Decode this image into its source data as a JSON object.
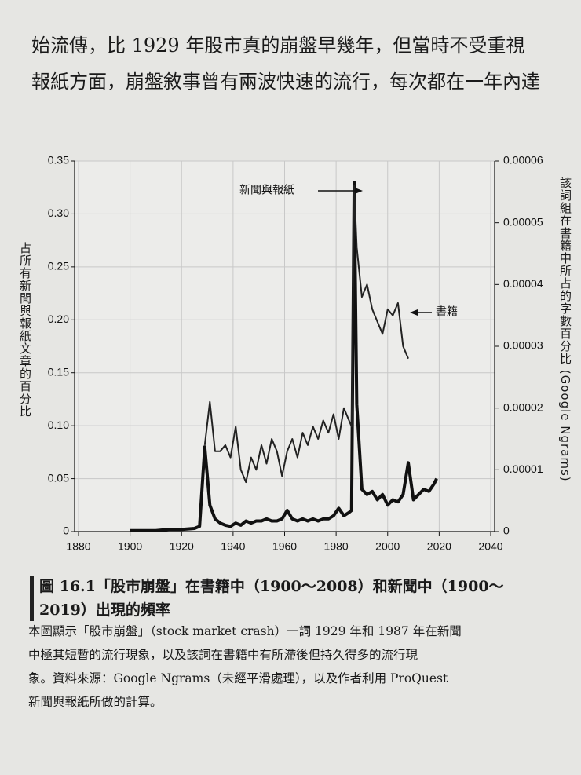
{
  "page": {
    "top_lines": [
      "始流傳，比 1929 年股市真的崩盤早幾年，但當時不受重視",
      "報紙方面，崩盤敘事曾有兩波快速的流行，每次都在一年內達"
    ],
    "caption_lines": [
      "圖 16.1「股市崩盤」在書籍中（1900～2008）和新聞中（1900～",
      "2019）出現的頻率"
    ],
    "description_lines": [
      "本圖顯示「股市崩盤」（stock market crash）一詞 1929 年和 1987 年在新聞",
      "中極其短暫的流行現象，以及該詞在書籍中有所滯後但持久得多的流行現",
      "象。資料來源：Google Ngrams（未經平滑處理），以及作者利用 ProQuest",
      "新聞與報紙所做的計算。"
    ]
  },
  "chart_data": {
    "type": "line",
    "ylabel": "占所有新聞與報紙文章的百分比",
    "y2label": "該詞組在書籍中所占的字數百分比 (Google Ngrams)",
    "annotations": [
      "新聞與報紙",
      "書籍"
    ],
    "xlim": [
      1880,
      2040
    ],
    "xticks": [
      1880,
      1900,
      1920,
      1940,
      1960,
      1980,
      2000,
      2020,
      2040
    ],
    "ylim": [
      0,
      0.35
    ],
    "yticks": [
      0,
      0.05,
      {
        "value": 0.1,
        "label": "0.10"
      },
      0.15,
      {
        "value": 0.2,
        "label": "0.20"
      },
      0.25,
      {
        "value": 0.3,
        "label": "0.30"
      },
      0.35
    ],
    "y2lim": [
      0,
      6e-05
    ],
    "y2ticks": [
      0,
      1e-05,
      2e-05,
      3e-05,
      4e-05,
      5e-05,
      6e-05
    ],
    "grid": true,
    "x": [
      1900,
      1905,
      1910,
      1915,
      1920,
      1925,
      1927,
      1929,
      1931,
      1933,
      1935,
      1937,
      1939,
      1941,
      1943,
      1945,
      1947,
      1949,
      1951,
      1953,
      1955,
      1957,
      1959,
      1961,
      1963,
      1965,
      1967,
      1969,
      1971,
      1973,
      1975,
      1977,
      1979,
      1981,
      1983,
      1985,
      1986,
      1987,
      1988,
      1990,
      1992,
      1994,
      1996,
      1998,
      2000,
      2002,
      2004,
      2006,
      2008,
      2010,
      2012,
      2014,
      2016,
      2018,
      2019
    ],
    "series": [
      {
        "name": "新聞與報紙",
        "color": "#111111",
        "axis": "y",
        "values": [
          0.001,
          0.001,
          0.001,
          0.002,
          0.002,
          0.003,
          0.005,
          0.08,
          0.025,
          0.012,
          0.008,
          0.006,
          0.005,
          0.008,
          0.006,
          0.01,
          0.008,
          0.01,
          0.01,
          0.012,
          0.01,
          0.01,
          0.012,
          0.02,
          0.012,
          0.01,
          0.012,
          0.01,
          0.012,
          0.01,
          0.012,
          0.012,
          0.015,
          0.022,
          0.015,
          0.018,
          0.02,
          0.33,
          0.12,
          0.04,
          0.035,
          0.038,
          0.03,
          0.035,
          0.025,
          0.03,
          0.028,
          0.035,
          0.065,
          0.03,
          0.035,
          0.04,
          0.038,
          0.045,
          0.05
        ]
      },
      {
        "name": "書籍",
        "color": "#222222",
        "axis": "y2",
        "values": [
          null,
          null,
          null,
          null,
          null,
          null,
          null,
          1.4e-05,
          2.1e-05,
          1.3e-05,
          1.3e-05,
          1.4e-05,
          1.2e-05,
          1.7e-05,
          1e-05,
          8e-06,
          1.2e-05,
          1e-05,
          1.4e-05,
          1.1e-05,
          1.5e-05,
          1.3e-05,
          9e-06,
          1.3e-05,
          1.5e-05,
          1.2e-05,
          1.6e-05,
          1.4e-05,
          1.7e-05,
          1.5e-05,
          1.8e-05,
          1.6e-05,
          1.9e-05,
          1.5e-05,
          2e-05,
          1.8e-05,
          1.7e-05,
          5.6e-05,
          4.6e-05,
          3.8e-05,
          4e-05,
          3.6e-05,
          3.4e-05,
          3.2e-05,
          3.6e-05,
          3.5e-05,
          3.7e-05,
          3e-05,
          2.8e-05,
          null,
          null,
          null,
          null,
          null,
          null
        ]
      }
    ]
  }
}
